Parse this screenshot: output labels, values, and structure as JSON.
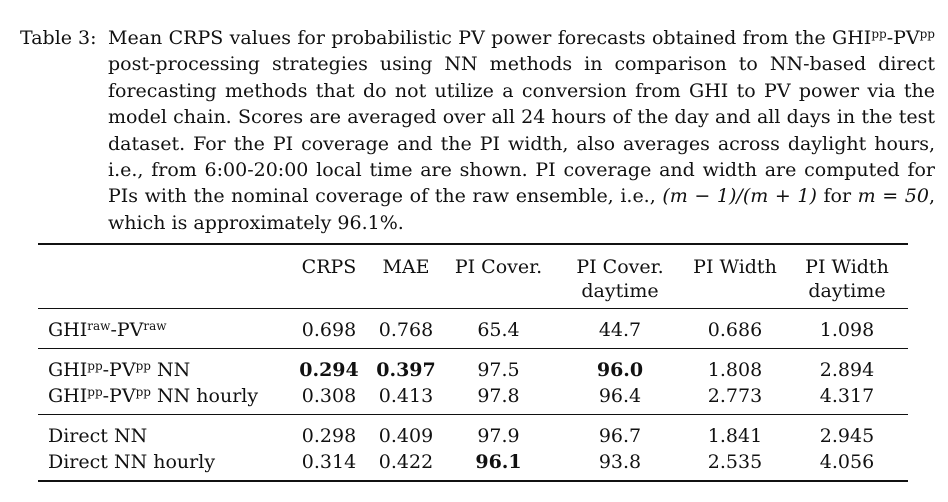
{
  "caption": {
    "label": "Table 3:",
    "text_1": "Mean CRPS values for probabilistic PV power forecasts obtained from the GHI",
    "sup_1": "pp",
    "text_2": "-PV",
    "sup_2": "pp",
    "text_3": " post-processing strategies using NN methods in comparison to NN-based direct forecasting methods that do not utilize a conversion from GHI to PV power via the model chain. Scores are averaged over all 24 hours of the day and all days in the test dataset. For the PI coverage and the PI width, also averages across daylight hours, i.e., from 6:00-20:00 local time are shown. PI coverage and width are computed for PIs with the nominal coverage of the raw ensemble, i.e., ",
    "formula": "(m − 1)/(m + 1)",
    "text_4": " for ",
    "formula_2": "m = 50",
    "text_5": ", which is approximately 96.1%."
  },
  "table": {
    "headers": [
      {
        "l1": "",
        "l2": ""
      },
      {
        "l1": "CRPS",
        "l2": ""
      },
      {
        "l1": "MAE",
        "l2": ""
      },
      {
        "l1": "PI Cover.",
        "l2": ""
      },
      {
        "l1": "PI Cover.",
        "l2": "daytime"
      },
      {
        "l1": "PI Width",
        "l2": ""
      },
      {
        "l1": "PI Width",
        "l2": "daytime"
      }
    ],
    "rows": [
      {
        "name": "GHI",
        "sup1": "raw",
        "mid": "-PV",
        "sup2": "raw",
        "suffix": "",
        "values": [
          "0.698",
          "0.768",
          "65.4",
          "44.7",
          "0.686",
          "1.098"
        ]
      },
      {
        "name": "GHI",
        "sup1": "pp",
        "mid": "-PV",
        "sup2": "pp",
        "suffix": " NN",
        "values": [
          "0.294",
          "0.397",
          "97.5",
          "96.0",
          "1.808",
          "2.894"
        ]
      },
      {
        "name": "GHI",
        "sup1": "pp",
        "mid": "-PV",
        "sup2": "pp",
        "suffix": " NN hourly",
        "values": [
          "0.308",
          "0.413",
          "97.8",
          "96.4",
          "2.773",
          "4.317"
        ]
      },
      {
        "name": "Direct NN",
        "sup1": "",
        "mid": "",
        "sup2": "",
        "suffix": "",
        "values": [
          "0.298",
          "0.409",
          "97.9",
          "96.7",
          "1.841",
          "2.945"
        ]
      },
      {
        "name": "Direct NN hourly",
        "sup1": "",
        "mid": "",
        "sup2": "",
        "suffix": "",
        "values": [
          "0.314",
          "0.422",
          "96.1",
          "93.8",
          "2.535",
          "4.056"
        ]
      }
    ]
  }
}
